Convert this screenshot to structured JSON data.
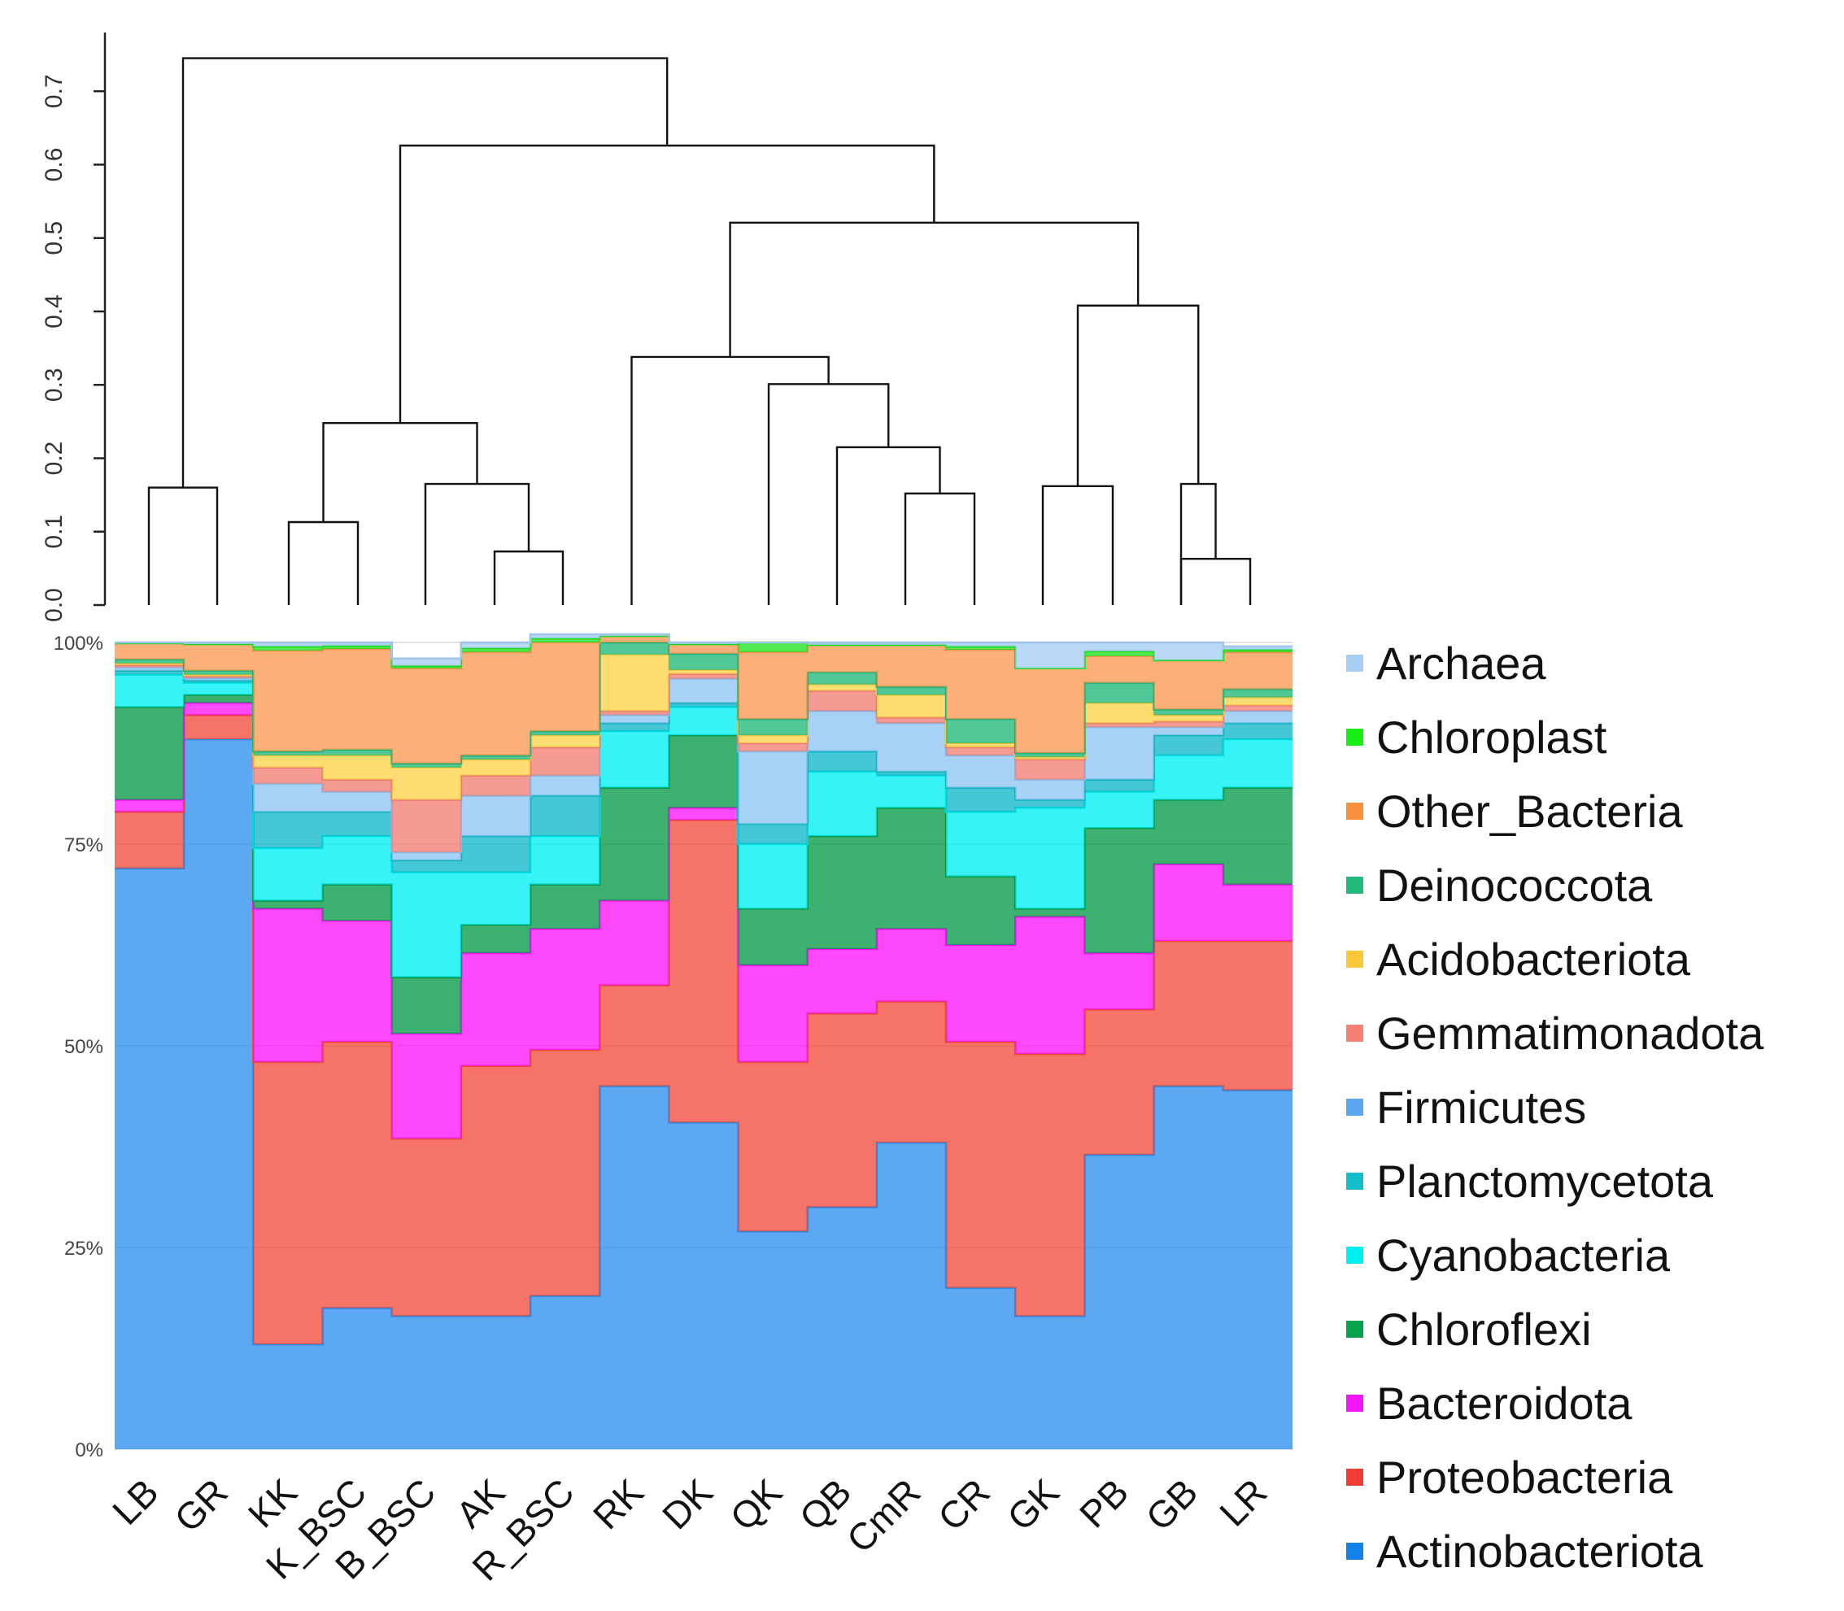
{
  "chart_data": [
    {
      "type": "dendrogram",
      "ylim": [
        0,
        0.78
      ],
      "yticks": [
        "0.0",
        "0.1",
        "0.2",
        "0.3",
        "0.4",
        "0.5",
        "0.6",
        "0.7"
      ],
      "leaves": [
        "LB",
        "GR",
        "KK",
        "K_BSC",
        "B_BSC",
        "AK",
        "R_BSC",
        "RK",
        "DK",
        "QK",
        "QB",
        "CmR",
        "CR",
        "GK",
        "PB",
        "GB",
        "LR"
      ],
      "merges": [
        {
          "left": "AK",
          "right": "R_BSC",
          "height": 0.073
        },
        {
          "left": "GB",
          "right": "LR",
          "height": 0.063
        },
        {
          "left": "KK",
          "right": "K_BSC",
          "height": 0.113
        },
        {
          "left": "CmR",
          "right": "CR",
          "height": 0.152
        },
        {
          "left": "LB",
          "right": "GR",
          "height": 0.16
        },
        {
          "left": "GK",
          "right": "PB",
          "height": 0.162
        },
        {
          "left": "B_BSC",
          "right": "(AK,R_BSC)",
          "height": 0.165
        },
        {
          "left": "PB",
          "right": "(GB,LR)",
          "height": 0.165
        },
        {
          "left": "QB",
          "right": "(CmR,CR)",
          "height": 0.215
        },
        {
          "left": "(KK,K_BSC)",
          "right": "(B_BSC,AK,R_BSC)",
          "height": 0.248
        },
        {
          "left": "QK",
          "right": "(QB,CmR,CR)",
          "height": 0.301
        },
        {
          "left": "RK,DK",
          "right": "(QK,QB,CmR,CR)",
          "height": 0.338
        },
        {
          "left": "(GK,PB)",
          "right": "(PB,GB,LR)",
          "height": 0.408
        },
        {
          "left": "(RK..CR)",
          "right": "(GK..LR)",
          "height": 0.521
        },
        {
          "left": "(KK..R_BSC)",
          "right": "(RK..LR)",
          "height": 0.626
        },
        {
          "left": "(LB,GR)",
          "right": "(KK..LR)",
          "height": 0.745
        }
      ]
    },
    {
      "type": "area",
      "stacked": true,
      "step": true,
      "ylim": [
        0,
        100
      ],
      "yticks": [
        "0%",
        "25%",
        "50%",
        "75%",
        "100%"
      ],
      "categories": [
        "LB",
        "GR",
        "KK",
        "K_BSC",
        "B_BSC",
        "AK",
        "R_BSC",
        "RK",
        "DK",
        "QK",
        "QB",
        "CmR",
        "CR",
        "GK",
        "PB",
        "GB",
        "LR"
      ],
      "series": [
        {
          "name": "Actinobacteriota",
          "color": "#2f8fee",
          "values": [
            72,
            88,
            13,
            17.5,
            16.5,
            16.5,
            19,
            45,
            40.5,
            27,
            30,
            38,
            20,
            16.5,
            36.5,
            45,
            44.5
          ]
        },
        {
          "name": "Proteobacteria",
          "color": "#f24b3c",
          "values": [
            7,
            3,
            35,
            33,
            22,
            31,
            30.5,
            12.5,
            37.5,
            21,
            24,
            17.5,
            30.5,
            32.5,
            18,
            18,
            18.5
          ]
        },
        {
          "name": "Bacteroidota",
          "color": "#ff16ff",
          "values": [
            1.5,
            1.5,
            19,
            15,
            13,
            14,
            15,
            10.5,
            1.5,
            12,
            8,
            9,
            12,
            17,
            7,
            9.5,
            7
          ]
        },
        {
          "name": "Chloroflexi",
          "color": "#079b48",
          "values": [
            11.5,
            1,
            1,
            4.5,
            7,
            3.5,
            5.5,
            14,
            9,
            7,
            14,
            15,
            8.5,
            1,
            15.5,
            8,
            12
          ]
        },
        {
          "name": "Cyanobacteria",
          "color": "#00f0f2",
          "values": [
            4,
            1.5,
            6.5,
            6,
            13,
            6.5,
            6,
            7,
            3.5,
            8,
            8,
            4,
            8,
            12.5,
            4.5,
            5.5,
            6
          ]
        },
        {
          "name": "Planctomycetota",
          "color": "#11b9c9",
          "values": [
            0.5,
            0.3,
            4.5,
            3,
            1.5,
            4.5,
            5,
            1,
            0.5,
            2.5,
            2.5,
            0.5,
            3,
            1,
            1.5,
            2.5,
            2
          ]
        },
        {
          "name": "Firmicutes",
          "color": "#8ec5f2",
          "values": [
            0.4,
            0.3,
            3.5,
            2.5,
            1,
            5,
            2.5,
            1,
            3,
            9,
            5,
            6,
            4,
            2.5,
            6.5,
            1,
            1.5
          ]
        },
        {
          "name": "Gemmatimonadota",
          "color": "#f47f74",
          "values": [
            0.3,
            0.2,
            2,
            1.5,
            6.5,
            2.5,
            3.5,
            0.5,
            0.6,
            1,
            2.5,
            0.7,
            1,
            2.5,
            0.5,
            0.7,
            0.7
          ]
        },
        {
          "name": "Acidobacteriota",
          "color": "#fcd24a",
          "values": [
            0.2,
            0.2,
            1.5,
            3,
            4,
            2,
            1.5,
            7,
            0.5,
            1,
            0.8,
            2.8,
            0.5,
            0.3,
            2.5,
            0.8,
            1
          ]
        },
        {
          "name": "Deinococcota",
          "color": "#20b87a",
          "values": [
            0.5,
            0.5,
            0.5,
            0.7,
            0.5,
            0.5,
            0.5,
            1.5,
            2,
            2,
            1.5,
            1,
            3,
            0.5,
            2.5,
            0.7,
            1
          ]
        },
        {
          "name": "Other_Bacteria",
          "color": "#f99a52",
          "values": [
            2,
            3.3,
            12.5,
            12.5,
            11.8,
            12.8,
            11,
            0.8,
            1.2,
            8.3,
            3.4,
            5.2,
            8.6,
            10.5,
            3.3,
            6.1,
            4.6
          ]
        },
        {
          "name": "Chloroplast",
          "color": "#1ee41e",
          "values": [
            0,
            0,
            0.5,
            0.4,
            0.3,
            0.5,
            0.5,
            0,
            0,
            1.2,
            0,
            0,
            0.4,
            0,
            0.6,
            0,
            0.3
          ]
        },
        {
          "name": "Archaea",
          "color": "#a7cdf5",
          "values": [
            0.1,
            0.2,
            0.5,
            0.4,
            0.9,
            0.7,
            0.5,
            0.2,
            0.2,
            0,
            0.3,
            0.3,
            0.5,
            3.2,
            1.1,
            2.2,
            0.4
          ]
        }
      ]
    }
  ],
  "legend": [
    {
      "label": "Archaea",
      "color": "#a7cdf5"
    },
    {
      "label": "Chloroplast",
      "color": "#16f016"
    },
    {
      "label": "Other_Bacteria",
      "color": "#f9913c"
    },
    {
      "label": "Deinococcota",
      "color": "#21b97c"
    },
    {
      "label": "Acidobacteriota",
      "color": "#fbc83a"
    },
    {
      "label": "Gemmatimonadota",
      "color": "#f57f73"
    },
    {
      "label": "Firmicutes",
      "color": "#5ba6f0"
    },
    {
      "label": "Planctomycetota",
      "color": "#10bfc9"
    },
    {
      "label": "Cyanobacteria",
      "color": "#00f0f2"
    },
    {
      "label": "Chloroflexi",
      "color": "#06a34a"
    },
    {
      "label": "Bacteroidota",
      "color": "#f216f2"
    },
    {
      "label": "Proteobacteria",
      "color": "#f23b34"
    },
    {
      "label": "Actinobacteriota",
      "color": "#1480ea"
    }
  ]
}
